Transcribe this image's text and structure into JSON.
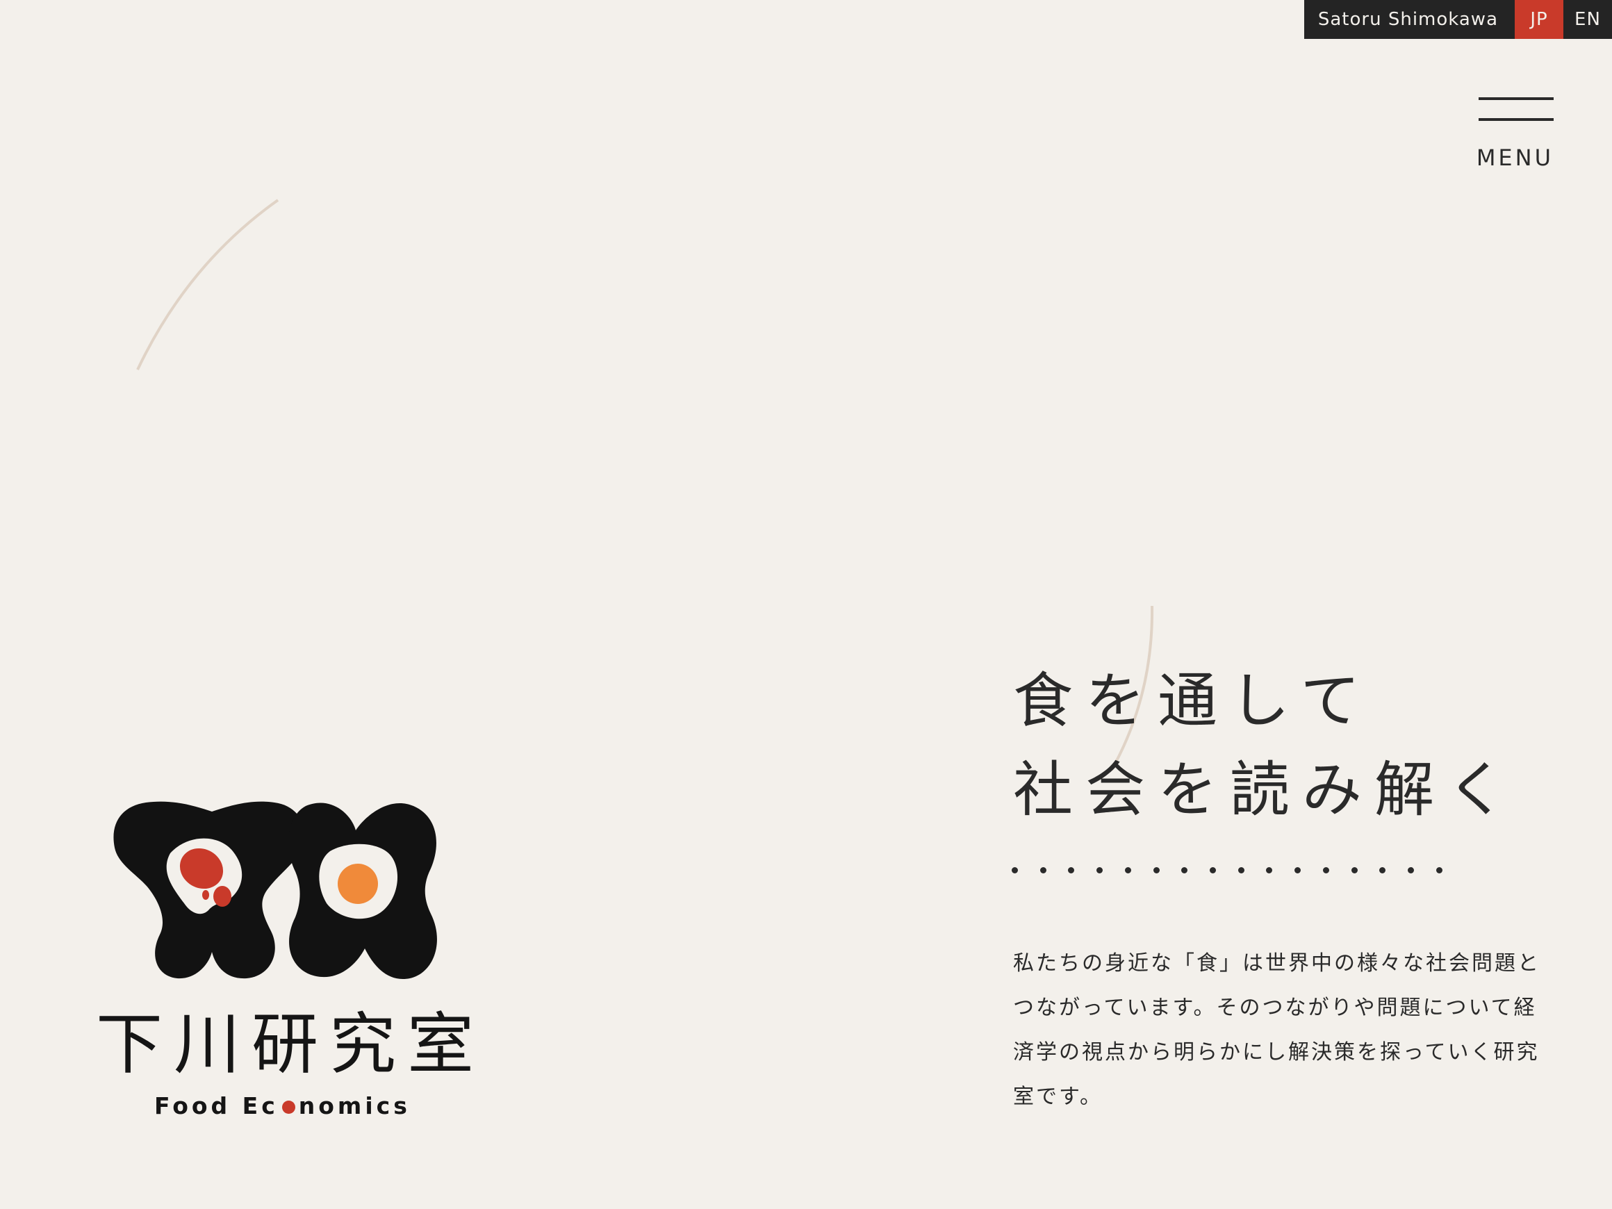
{
  "topbar": {
    "name": "Satoru Shimokawa",
    "lang_jp": "JP",
    "lang_en": "EN"
  },
  "menu": {
    "label": "MENU"
  },
  "logo": {
    "title": "下川研究室",
    "subtitle_part1": "Food Ec",
    "subtitle_part2": "nomics"
  },
  "hero": {
    "headline_line1": "食を通して",
    "headline_line2": "社会を読み解く",
    "body": "私たちの身近な「食」は世界中の様々な社会問題とつながっています。そのつながりや問題について経済学の視点から明らかにし解決策を探っていく研究室です。"
  },
  "colors": {
    "background": "#f3f0eb",
    "accent_red": "#c93a2a",
    "accent_orange": "#f08a3a",
    "dark": "#242424",
    "deco_line": "#e0d3c6"
  }
}
